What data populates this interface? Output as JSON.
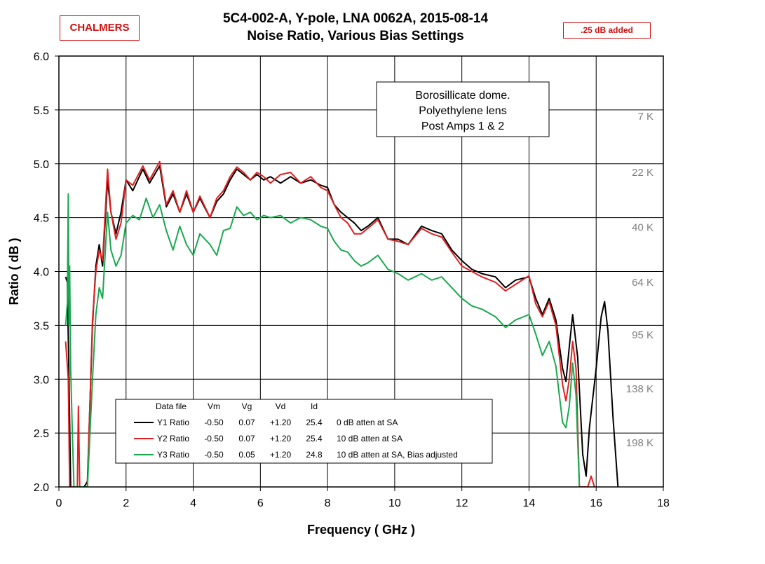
{
  "header": {
    "logo": "CHALMERS",
    "title_line1": "5C4-002-A,  Y-pole,  LNA 0062A,  2015-08-14",
    "title_line2": "Noise Ratio,  Various Bias Settings",
    "offset_note": ".25 dB added"
  },
  "chart_data": {
    "type": "line",
    "xlabel": "Frequency ( GHz )",
    "ylabel": "Ratio ( dB )",
    "xlim": [
      0,
      18
    ],
    "ylim": [
      2.0,
      6.0
    ],
    "xticks": [
      0,
      2,
      4,
      6,
      8,
      10,
      12,
      14,
      16,
      18
    ],
    "yticks": [
      2.0,
      2.5,
      3.0,
      3.5,
      4.0,
      4.5,
      5.0,
      5.5,
      6.0
    ],
    "grid": true,
    "annotation": [
      "Borosillicate dome.",
      "Polyethylene lens",
      "Post Amps 1 & 2"
    ],
    "temperature_markers": [
      {
        "label": "7 K",
        "y": 5.44
      },
      {
        "label": "22 K",
        "y": 4.92
      },
      {
        "label": "40 K",
        "y": 4.41
      },
      {
        "label": "64 K",
        "y": 3.9
      },
      {
        "label": "95 K",
        "y": 3.41
      },
      {
        "label": "138 K",
        "y": 2.91
      },
      {
        "label": "198 K",
        "y": 2.41
      }
    ],
    "legend": {
      "placement": "bottom-center",
      "headers": [
        "Data file",
        "Vm",
        "Vg",
        "Vd",
        "Id"
      ],
      "rows": [
        {
          "name": "Y1 Ratio",
          "vm": "-0.50",
          "vg": "0.07",
          "vd": "+1.20",
          "id": "25.4",
          "note": "0 dB atten at SA"
        },
        {
          "name": "Y2 Ratio",
          "vm": "-0.50",
          "vg": "0.07",
          "vd": "+1.20",
          "id": "25.4",
          "note": "10 dB atten at SA"
        },
        {
          "name": "Y3 Ratio",
          "vm": "-0.50",
          "vg": "0.05",
          "vd": "+1.20",
          "id": "24.8",
          "note": "10 dB atten at SA, Bias adjusted"
        }
      ]
    },
    "series": [
      {
        "name": "Y1 Ratio",
        "color": "#000000",
        "points": [
          [
            0.2,
            3.95
          ],
          [
            0.25,
            3.9
          ],
          [
            0.3,
            3.0
          ],
          [
            0.35,
            2.0
          ],
          [
            0.5,
            2.0
          ],
          [
            0.75,
            2.0
          ],
          [
            0.85,
            2.05
          ],
          [
            1.0,
            3.5
          ],
          [
            1.1,
            4.05
          ],
          [
            1.2,
            4.25
          ],
          [
            1.3,
            4.05
          ],
          [
            1.45,
            4.85
          ],
          [
            1.55,
            4.55
          ],
          [
            1.7,
            4.35
          ],
          [
            1.85,
            4.55
          ],
          [
            2.0,
            4.85
          ],
          [
            2.2,
            4.75
          ],
          [
            2.5,
            4.95
          ],
          [
            2.7,
            4.82
          ],
          [
            3.0,
            4.98
          ],
          [
            3.2,
            4.6
          ],
          [
            3.4,
            4.72
          ],
          [
            3.6,
            4.55
          ],
          [
            3.8,
            4.72
          ],
          [
            4.0,
            4.55
          ],
          [
            4.2,
            4.68
          ],
          [
            4.5,
            4.5
          ],
          [
            4.7,
            4.65
          ],
          [
            4.9,
            4.72
          ],
          [
            5.1,
            4.85
          ],
          [
            5.3,
            4.95
          ],
          [
            5.5,
            4.9
          ],
          [
            5.7,
            4.85
          ],
          [
            5.9,
            4.9
          ],
          [
            6.1,
            4.85
          ],
          [
            6.3,
            4.88
          ],
          [
            6.6,
            4.82
          ],
          [
            6.9,
            4.88
          ],
          [
            7.2,
            4.82
          ],
          [
            7.5,
            4.85
          ],
          [
            7.8,
            4.8
          ],
          [
            8.0,
            4.78
          ],
          [
            8.2,
            4.62
          ],
          [
            8.4,
            4.55
          ],
          [
            8.6,
            4.5
          ],
          [
            8.8,
            4.45
          ],
          [
            9.0,
            4.38
          ],
          [
            9.2,
            4.42
          ],
          [
            9.5,
            4.5
          ],
          [
            9.8,
            4.3
          ],
          [
            10.1,
            4.3
          ],
          [
            10.4,
            4.25
          ],
          [
            10.8,
            4.42
          ],
          [
            11.1,
            4.38
          ],
          [
            11.4,
            4.35
          ],
          [
            11.7,
            4.2
          ],
          [
            12.0,
            4.1
          ],
          [
            12.3,
            4.02
          ],
          [
            12.6,
            3.98
          ],
          [
            13.0,
            3.95
          ],
          [
            13.3,
            3.85
          ],
          [
            13.6,
            3.92
          ],
          [
            14.0,
            3.95
          ],
          [
            14.2,
            3.75
          ],
          [
            14.4,
            3.6
          ],
          [
            14.6,
            3.75
          ],
          [
            14.8,
            3.55
          ],
          [
            15.0,
            3.1
          ],
          [
            15.1,
            2.98
          ],
          [
            15.2,
            3.3
          ],
          [
            15.3,
            3.6
          ],
          [
            15.45,
            3.2
          ],
          [
            15.6,
            2.3
          ],
          [
            15.7,
            2.1
          ],
          [
            15.8,
            2.55
          ],
          [
            16.0,
            3.1
          ],
          [
            16.15,
            3.58
          ],
          [
            16.25,
            3.72
          ],
          [
            16.35,
            3.45
          ],
          [
            16.5,
            2.65
          ],
          [
            16.65,
            2.0
          ]
        ]
      },
      {
        "name": "Y2 Ratio",
        "color": "#e02020",
        "points": [
          [
            0.2,
            3.35
          ],
          [
            0.28,
            3.0
          ],
          [
            0.32,
            2.0
          ],
          [
            0.55,
            2.0
          ],
          [
            0.58,
            2.75
          ],
          [
            0.62,
            2.0
          ],
          [
            0.85,
            2.0
          ],
          [
            1.0,
            3.55
          ],
          [
            1.1,
            4.0
          ],
          [
            1.2,
            4.2
          ],
          [
            1.3,
            4.1
          ],
          [
            1.45,
            4.95
          ],
          [
            1.55,
            4.55
          ],
          [
            1.7,
            4.3
          ],
          [
            1.85,
            4.45
          ],
          [
            2.0,
            4.85
          ],
          [
            2.2,
            4.8
          ],
          [
            2.5,
            4.98
          ],
          [
            2.7,
            4.85
          ],
          [
            3.0,
            5.02
          ],
          [
            3.2,
            4.62
          ],
          [
            3.4,
            4.75
          ],
          [
            3.6,
            4.55
          ],
          [
            3.8,
            4.75
          ],
          [
            4.0,
            4.55
          ],
          [
            4.2,
            4.7
          ],
          [
            4.5,
            4.5
          ],
          [
            4.7,
            4.68
          ],
          [
            4.9,
            4.75
          ],
          [
            5.1,
            4.88
          ],
          [
            5.3,
            4.97
          ],
          [
            5.5,
            4.92
          ],
          [
            5.7,
            4.85
          ],
          [
            5.9,
            4.92
          ],
          [
            6.1,
            4.88
          ],
          [
            6.3,
            4.82
          ],
          [
            6.6,
            4.9
          ],
          [
            6.9,
            4.92
          ],
          [
            7.2,
            4.82
          ],
          [
            7.5,
            4.88
          ],
          [
            7.8,
            4.78
          ],
          [
            8.0,
            4.75
          ],
          [
            8.2,
            4.62
          ],
          [
            8.4,
            4.5
          ],
          [
            8.6,
            4.45
          ],
          [
            8.8,
            4.35
          ],
          [
            9.0,
            4.35
          ],
          [
            9.2,
            4.4
          ],
          [
            9.5,
            4.48
          ],
          [
            9.8,
            4.3
          ],
          [
            10.1,
            4.28
          ],
          [
            10.4,
            4.25
          ],
          [
            10.8,
            4.4
          ],
          [
            11.1,
            4.35
          ],
          [
            11.4,
            4.32
          ],
          [
            11.7,
            4.18
          ],
          [
            12.0,
            4.05
          ],
          [
            12.3,
            4.0
          ],
          [
            12.6,
            3.95
          ],
          [
            13.0,
            3.9
          ],
          [
            13.3,
            3.82
          ],
          [
            13.6,
            3.88
          ],
          [
            14.0,
            3.96
          ],
          [
            14.2,
            3.7
          ],
          [
            14.4,
            3.58
          ],
          [
            14.6,
            3.72
          ],
          [
            14.8,
            3.5
          ],
          [
            15.0,
            2.95
          ],
          [
            15.1,
            2.8
          ],
          [
            15.2,
            3.0
          ],
          [
            15.3,
            3.35
          ],
          [
            15.4,
            3.1
          ],
          [
            15.5,
            2.0
          ],
          [
            15.75,
            2.0
          ],
          [
            15.85,
            2.1
          ],
          [
            15.95,
            2.0
          ]
        ]
      },
      {
        "name": "Y3 Ratio",
        "color": "#1aa84f",
        "points": [
          [
            0.2,
            3.5
          ],
          [
            0.25,
            3.7
          ],
          [
            0.28,
            4.72
          ],
          [
            0.3,
            3.5
          ],
          [
            0.32,
            4.05
          ],
          [
            0.35,
            3.1
          ],
          [
            0.4,
            2.5
          ],
          [
            0.45,
            2.0
          ],
          [
            0.85,
            2.0
          ],
          [
            1.0,
            3.0
          ],
          [
            1.1,
            3.6
          ],
          [
            1.2,
            3.85
          ],
          [
            1.3,
            3.75
          ],
          [
            1.45,
            4.55
          ],
          [
            1.55,
            4.2
          ],
          [
            1.7,
            4.05
          ],
          [
            1.85,
            4.15
          ],
          [
            2.0,
            4.45
          ],
          [
            2.2,
            4.52
          ],
          [
            2.4,
            4.48
          ],
          [
            2.6,
            4.68
          ],
          [
            2.8,
            4.5
          ],
          [
            3.0,
            4.62
          ],
          [
            3.2,
            4.38
          ],
          [
            3.4,
            4.2
          ],
          [
            3.6,
            4.42
          ],
          [
            3.8,
            4.25
          ],
          [
            4.0,
            4.15
          ],
          [
            4.2,
            4.35
          ],
          [
            4.5,
            4.25
          ],
          [
            4.7,
            4.15
          ],
          [
            4.9,
            4.38
          ],
          [
            5.1,
            4.4
          ],
          [
            5.3,
            4.6
          ],
          [
            5.5,
            4.52
          ],
          [
            5.7,
            4.55
          ],
          [
            5.9,
            4.48
          ],
          [
            6.1,
            4.52
          ],
          [
            6.3,
            4.5
          ],
          [
            6.6,
            4.52
          ],
          [
            6.9,
            4.45
          ],
          [
            7.2,
            4.5
          ],
          [
            7.5,
            4.48
          ],
          [
            7.8,
            4.42
          ],
          [
            8.0,
            4.4
          ],
          [
            8.2,
            4.28
          ],
          [
            8.4,
            4.2
          ],
          [
            8.6,
            4.18
          ],
          [
            8.8,
            4.1
          ],
          [
            9.0,
            4.05
          ],
          [
            9.2,
            4.08
          ],
          [
            9.5,
            4.15
          ],
          [
            9.8,
            4.02
          ],
          [
            10.1,
            3.98
          ],
          [
            10.4,
            3.92
          ],
          [
            10.8,
            3.98
          ],
          [
            11.1,
            3.92
          ],
          [
            11.4,
            3.95
          ],
          [
            11.7,
            3.85
          ],
          [
            12.0,
            3.75
          ],
          [
            12.3,
            3.68
          ],
          [
            12.6,
            3.65
          ],
          [
            13.0,
            3.58
          ],
          [
            13.3,
            3.48
          ],
          [
            13.6,
            3.55
          ],
          [
            14.0,
            3.6
          ],
          [
            14.2,
            3.42
          ],
          [
            14.4,
            3.22
          ],
          [
            14.6,
            3.35
          ],
          [
            14.8,
            3.12
          ],
          [
            15.0,
            2.6
          ],
          [
            15.1,
            2.55
          ],
          [
            15.2,
            2.75
          ],
          [
            15.3,
            3.15
          ],
          [
            15.4,
            2.85
          ],
          [
            15.5,
            2.0
          ]
        ]
      }
    ]
  }
}
